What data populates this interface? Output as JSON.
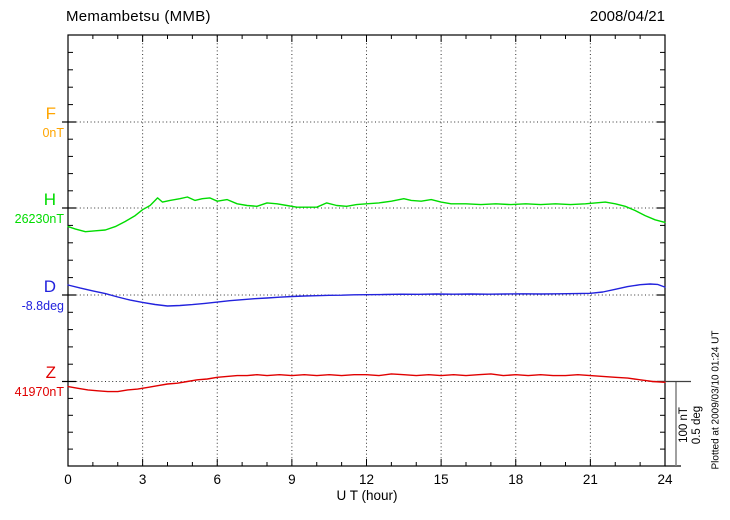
{
  "header": {
    "title": "Memambetsu (MMB)",
    "date": "2008/04/21"
  },
  "components": [
    {
      "id": "F",
      "label": "F",
      "value_label": "0nT",
      "color": "#FFA500"
    },
    {
      "id": "H",
      "label": "H",
      "value_label": "26230nT",
      "color": "#00DC00"
    },
    {
      "id": "D",
      "label": "D",
      "value_label": "-8.8deg",
      "color": "#2222DD"
    },
    {
      "id": "Z",
      "label": "Z",
      "value_label": "41970nT",
      "color": "#E00000"
    }
  ],
  "x_axis": {
    "label": "U T (hour)",
    "ticks": [
      "0",
      "3",
      "6",
      "9",
      "12",
      "15",
      "18",
      "21",
      "24"
    ]
  },
  "scale_bar": {
    "line1": "100 nT",
    "line2": "0.5 deg"
  },
  "plot_note": "Plotted at 2009/03/10 01:24 UT",
  "chart_data": {
    "type": "line",
    "title": "Memambetsu (MMB) magnetogram, 2008/04/21",
    "xlabel": "U T (hour)",
    "x_range": [
      0,
      24
    ],
    "x_tick_step": 3,
    "grid": "dotted",
    "legend_position": "left-margin",
    "scale": {
      "nT_per_division": 100,
      "deg_per_division": 0.5
    },
    "series": [
      {
        "name": "F",
        "units": "nT",
        "base_value": 0,
        "color": "#FFA500",
        "points": []
      },
      {
        "name": "H",
        "units": "nT",
        "base_value": 26230,
        "color": "#00DC00",
        "points": [
          [
            0,
            -22
          ],
          [
            0.3,
            -25
          ],
          [
            0.7,
            -28
          ],
          [
            1.1,
            -27
          ],
          [
            1.5,
            -26
          ],
          [
            1.9,
            -22
          ],
          [
            2.3,
            -16
          ],
          [
            2.7,
            -9
          ],
          [
            3.0,
            -2
          ],
          [
            3.3,
            3
          ],
          [
            3.6,
            12
          ],
          [
            3.8,
            7
          ],
          [
            4.1,
            9
          ],
          [
            4.5,
            11
          ],
          [
            4.8,
            13
          ],
          [
            5.1,
            9
          ],
          [
            5.4,
            11
          ],
          [
            5.7,
            12
          ],
          [
            6.0,
            8
          ],
          [
            6.4,
            10
          ],
          [
            6.8,
            5
          ],
          [
            7.2,
            3
          ],
          [
            7.6,
            2
          ],
          [
            8.0,
            6
          ],
          [
            8.4,
            5
          ],
          [
            8.8,
            3
          ],
          [
            9.2,
            1
          ],
          [
            9.6,
            1
          ],
          [
            10.0,
            1
          ],
          [
            10.4,
            6
          ],
          [
            10.8,
            3
          ],
          [
            11.2,
            2
          ],
          [
            11.6,
            4
          ],
          [
            12.0,
            5
          ],
          [
            12.5,
            6
          ],
          [
            13.0,
            8
          ],
          [
            13.5,
            11
          ],
          [
            13.8,
            9
          ],
          [
            14.2,
            8
          ],
          [
            14.6,
            10
          ],
          [
            15.0,
            7
          ],
          [
            15.4,
            5
          ],
          [
            16.0,
            5
          ],
          [
            16.6,
            4
          ],
          [
            17.2,
            5
          ],
          [
            17.8,
            4
          ],
          [
            18.4,
            5
          ],
          [
            19.0,
            4
          ],
          [
            19.6,
            5
          ],
          [
            20.2,
            4
          ],
          [
            20.8,
            5
          ],
          [
            21.2,
            6
          ],
          [
            21.6,
            7
          ],
          [
            22.0,
            5
          ],
          [
            22.4,
            2
          ],
          [
            22.8,
            -3
          ],
          [
            23.2,
            -9
          ],
          [
            23.6,
            -14
          ],
          [
            24,
            -17
          ]
        ]
      },
      {
        "name": "D",
        "units": "deg",
        "base_value": -8.8,
        "color": "#2222DD",
        "points": [
          [
            0,
            0.059
          ],
          [
            0.5,
            0.041
          ],
          [
            1,
            0.024
          ],
          [
            1.5,
            0.008
          ],
          [
            2,
            -0.012
          ],
          [
            2.5,
            -0.03
          ],
          [
            3,
            -0.044
          ],
          [
            3.5,
            -0.056
          ],
          [
            4,
            -0.065
          ],
          [
            4.5,
            -0.062
          ],
          [
            5,
            -0.057
          ],
          [
            5.5,
            -0.05
          ],
          [
            6,
            -0.042
          ],
          [
            6.5,
            -0.034
          ],
          [
            7,
            -0.028
          ],
          [
            7.5,
            -0.022
          ],
          [
            8,
            -0.018
          ],
          [
            8.5,
            -0.013
          ],
          [
            9,
            -0.009
          ],
          [
            9.5,
            -0.006
          ],
          [
            10,
            -0.004
          ],
          [
            10.5,
            -0.002
          ],
          [
            11,
            -0.001
          ],
          [
            11.5,
            0.001
          ],
          [
            12,
            0.002
          ],
          [
            12.7,
            0.003
          ],
          [
            13.4,
            0.005
          ],
          [
            14.1,
            0.004
          ],
          [
            14.8,
            0.006
          ],
          [
            15.5,
            0.005
          ],
          [
            16.2,
            0.006
          ],
          [
            16.9,
            0.005
          ],
          [
            17.6,
            0.006
          ],
          [
            18.3,
            0.007
          ],
          [
            19.0,
            0.006
          ],
          [
            19.7,
            0.007
          ],
          [
            20.4,
            0.008
          ],
          [
            21.0,
            0.01
          ],
          [
            21.5,
            0.018
          ],
          [
            22.0,
            0.034
          ],
          [
            22.5,
            0.05
          ],
          [
            23.0,
            0.061
          ],
          [
            23.4,
            0.065
          ],
          [
            23.7,
            0.063
          ],
          [
            24,
            0.047
          ]
        ]
      },
      {
        "name": "Z",
        "units": "nT",
        "base_value": 41970,
        "color": "#E00000",
        "points": [
          [
            0,
            -6
          ],
          [
            0.4,
            -8
          ],
          [
            0.8,
            -10
          ],
          [
            1.2,
            -11
          ],
          [
            1.6,
            -12
          ],
          [
            2.0,
            -12
          ],
          [
            2.4,
            -10
          ],
          [
            2.8,
            -9
          ],
          [
            3.2,
            -7
          ],
          [
            3.6,
            -5
          ],
          [
            4.0,
            -3
          ],
          [
            4.4,
            -2
          ],
          [
            4.8,
            0
          ],
          [
            5.2,
            2
          ],
          [
            5.6,
            3
          ],
          [
            6.0,
            5
          ],
          [
            6.4,
            6
          ],
          [
            6.8,
            7
          ],
          [
            7.2,
            7
          ],
          [
            7.6,
            8
          ],
          [
            8.0,
            7
          ],
          [
            8.5,
            8
          ],
          [
            9.0,
            7
          ],
          [
            9.5,
            8
          ],
          [
            10.0,
            7
          ],
          [
            10.5,
            8
          ],
          [
            11.0,
            7
          ],
          [
            11.5,
            8
          ],
          [
            12.0,
            8
          ],
          [
            12.5,
            7
          ],
          [
            13.0,
            9
          ],
          [
            13.5,
            8
          ],
          [
            14.0,
            7
          ],
          [
            14.5,
            8
          ],
          [
            15.0,
            7
          ],
          [
            15.5,
            8
          ],
          [
            16.0,
            7
          ],
          [
            16.5,
            8
          ],
          [
            17.0,
            9
          ],
          [
            17.5,
            7
          ],
          [
            18.0,
            8
          ],
          [
            18.5,
            7
          ],
          [
            19.0,
            8
          ],
          [
            19.5,
            7
          ],
          [
            20.0,
            7
          ],
          [
            20.5,
            8
          ],
          [
            21.0,
            7
          ],
          [
            21.5,
            6
          ],
          [
            22.0,
            5
          ],
          [
            22.5,
            4
          ],
          [
            23.0,
            2
          ],
          [
            23.5,
            0
          ],
          [
            24,
            -1
          ]
        ]
      }
    ]
  }
}
